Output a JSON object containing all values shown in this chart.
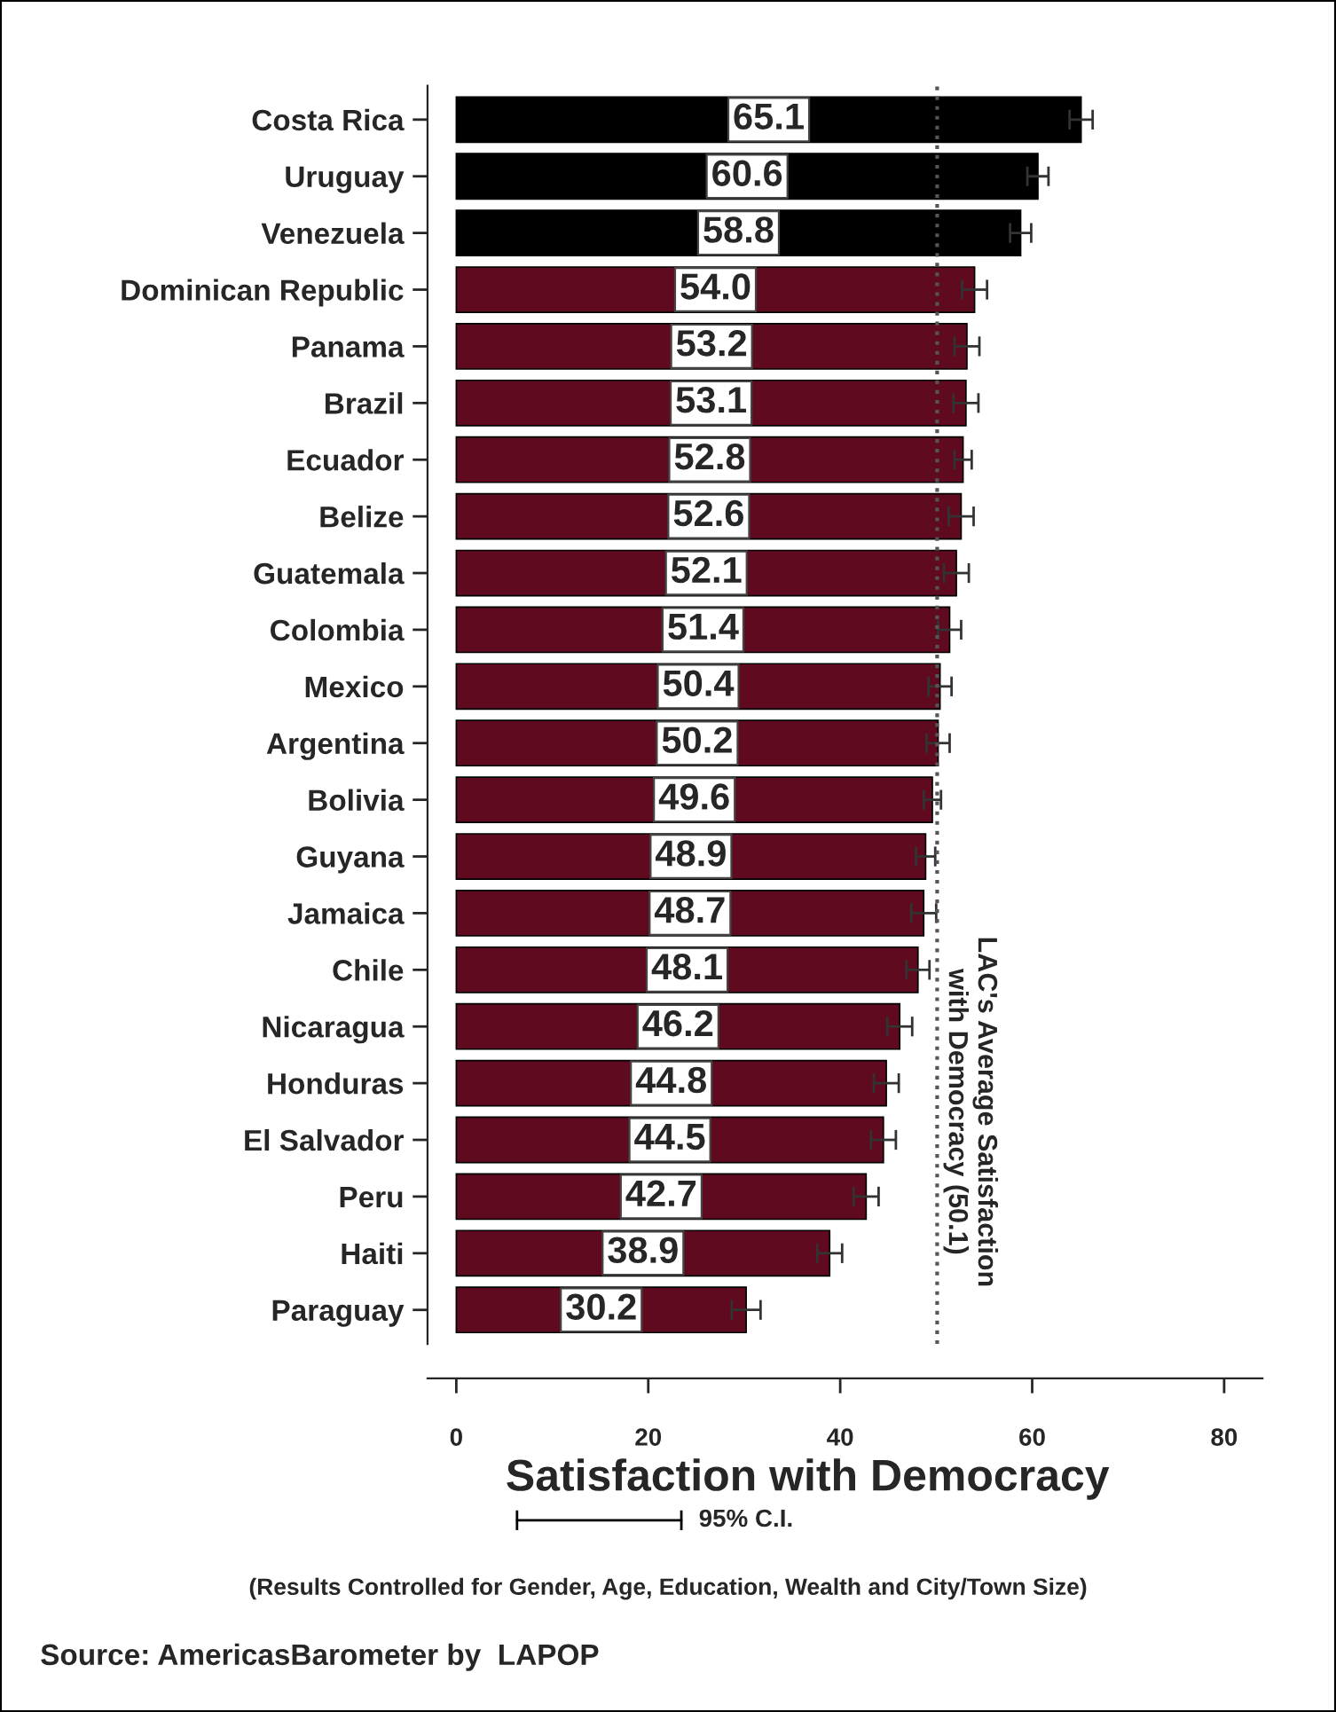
{
  "chart_data": {
    "type": "bar",
    "orientation": "horizontal",
    "xlabel": "Satisfaction with Democracy",
    "categories": [
      "Costa Rica",
      "Uruguay",
      "Venezuela",
      "Dominican Republic",
      "Panama",
      "Brazil",
      "Ecuador",
      "Belize",
      "Guatemala",
      "Colombia",
      "Mexico",
      "Argentina",
      "Bolivia",
      "Guyana",
      "Jamaica",
      "Chile",
      "Nicaragua",
      "Honduras",
      "El Salvador",
      "Peru",
      "Haiti",
      "Paraguay"
    ],
    "values": [
      65.1,
      60.6,
      58.8,
      54.0,
      53.2,
      53.1,
      52.8,
      52.6,
      52.1,
      51.4,
      50.4,
      50.2,
      49.6,
      48.9,
      48.7,
      48.1,
      46.2,
      44.8,
      44.5,
      42.7,
      38.9,
      30.2
    ],
    "errors": [
      1.2,
      1.1,
      1.1,
      1.3,
      1.3,
      1.3,
      0.9,
      1.3,
      1.3,
      1.2,
      1.2,
      1.2,
      0.9,
      1.0,
      1.3,
      1.2,
      1.3,
      1.3,
      1.3,
      1.3,
      1.3,
      1.5
    ],
    "colors": [
      "#000000",
      "#000000",
      "#000000",
      "#5f0a1e",
      "#5f0a1e",
      "#5f0a1e",
      "#5f0a1e",
      "#5f0a1e",
      "#5f0a1e",
      "#5f0a1e",
      "#5f0a1e",
      "#5f0a1e",
      "#5f0a1e",
      "#5f0a1e",
      "#5f0a1e",
      "#5f0a1e",
      "#5f0a1e",
      "#5f0a1e",
      "#5f0a1e",
      "#5f0a1e",
      "#5f0a1e",
      "#5f0a1e"
    ],
    "value_labels": [
      "65.1",
      "60.6",
      "58.8",
      "54.0",
      "53.2",
      "53.1",
      "52.8",
      "52.6",
      "52.1",
      "51.4",
      "50.4",
      "50.2",
      "49.6",
      "48.9",
      "48.7",
      "48.1",
      "46.2",
      "44.8",
      "44.5",
      "42.7",
      "38.9",
      "30.2"
    ],
    "xlim": [
      -3,
      84
    ],
    "xticks": [
      0,
      20,
      40,
      60,
      80
    ],
    "ref_lines": [
      {
        "axis": "x",
        "value": 50.1,
        "label": "LAC's Average Satisfaction\nwith Democracy (50.1)",
        "color": "#555555",
        "line_style": "dotted"
      }
    ],
    "grid": false,
    "annotations": [
      "95% C.I.",
      "(Results Controlled for Gender, Age, Education, Wealth and City/Town Size)",
      "Source: AmericasBarometer by  LAPOP"
    ]
  }
}
